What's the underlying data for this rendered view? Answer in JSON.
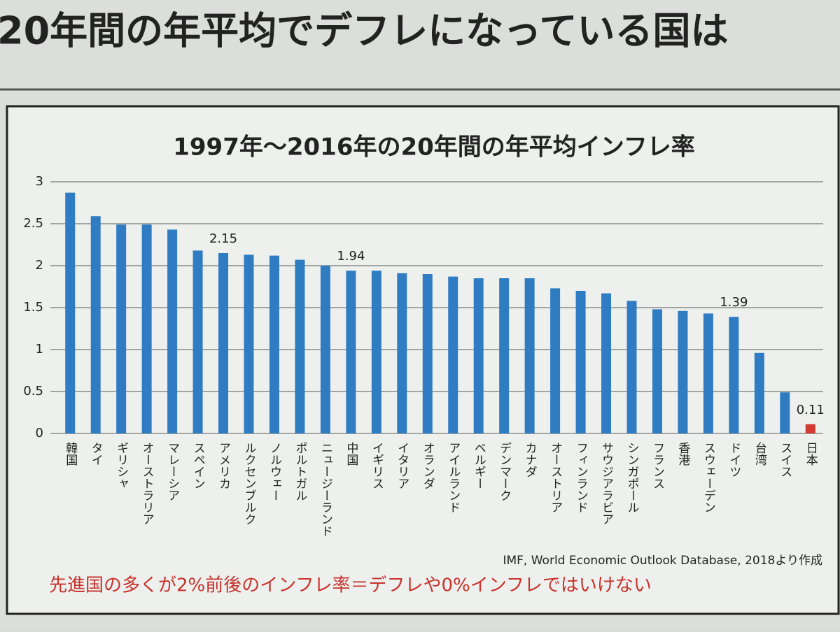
{
  "chart_data": {
    "type": "bar",
    "heading": "20年間の年平均でデフレになっている国は",
    "title": "1997年～2016年の20年間の年平均インフレ率",
    "categories": [
      "韓国",
      "タイ",
      "ギリシャ",
      "オーストラリア",
      "マレーシア",
      "スペイン",
      "アメリカ",
      "ルクセンブルク",
      "ノルウェー",
      "ポルトガル",
      "ニュージーランド",
      "中国",
      "イギリス",
      "イタリア",
      "オランダ",
      "アイルランド",
      "ベルギー",
      "デンマーク",
      "カナダ",
      "オーストリア",
      "フィンランド",
      "サウジアラビア",
      "シンガポール",
      "フランス",
      "香港",
      "スウェーデン",
      "ドイツ",
      "台湾",
      "スイス",
      "日本"
    ],
    "values": [
      2.87,
      2.59,
      2.49,
      2.49,
      2.43,
      2.18,
      2.15,
      2.13,
      2.12,
      2.07,
      2.0,
      1.94,
      1.94,
      1.91,
      1.9,
      1.87,
      1.85,
      1.85,
      1.85,
      1.73,
      1.7,
      1.67,
      1.58,
      1.48,
      1.46,
      1.43,
      1.39,
      0.96,
      0.49,
      0.11
    ],
    "value_labels": [
      null,
      null,
      null,
      null,
      null,
      null,
      "2.15",
      null,
      null,
      null,
      null,
      "1.94",
      null,
      null,
      null,
      null,
      null,
      null,
      null,
      null,
      null,
      null,
      null,
      null,
      null,
      null,
      "1.39",
      null,
      null,
      "0.11"
    ],
    "colors": [
      "#2f7cc2",
      "#2f7cc2",
      "#2f7cc2",
      "#2f7cc2",
      "#2f7cc2",
      "#2f7cc2",
      "#2f7cc2",
      "#2f7cc2",
      "#2f7cc2",
      "#2f7cc2",
      "#2f7cc2",
      "#2f7cc2",
      "#2f7cc2",
      "#2f7cc2",
      "#2f7cc2",
      "#2f7cc2",
      "#2f7cc2",
      "#2f7cc2",
      "#2f7cc2",
      "#2f7cc2",
      "#2f7cc2",
      "#2f7cc2",
      "#2f7cc2",
      "#2f7cc2",
      "#2f7cc2",
      "#2f7cc2",
      "#2f7cc2",
      "#2f7cc2",
      "#2f7cc2",
      "#d23a32"
    ],
    "ylim": [
      0,
      3
    ],
    "yticks": [
      0,
      0.5,
      1,
      1.5,
      2,
      2.5,
      3
    ],
    "grid": true,
    "source": "IMF, World Economic Outlook Database, 2018より作成",
    "note": "先進国の多くが2%前後のインフレ率＝デフレや0%インフレではいけない"
  }
}
